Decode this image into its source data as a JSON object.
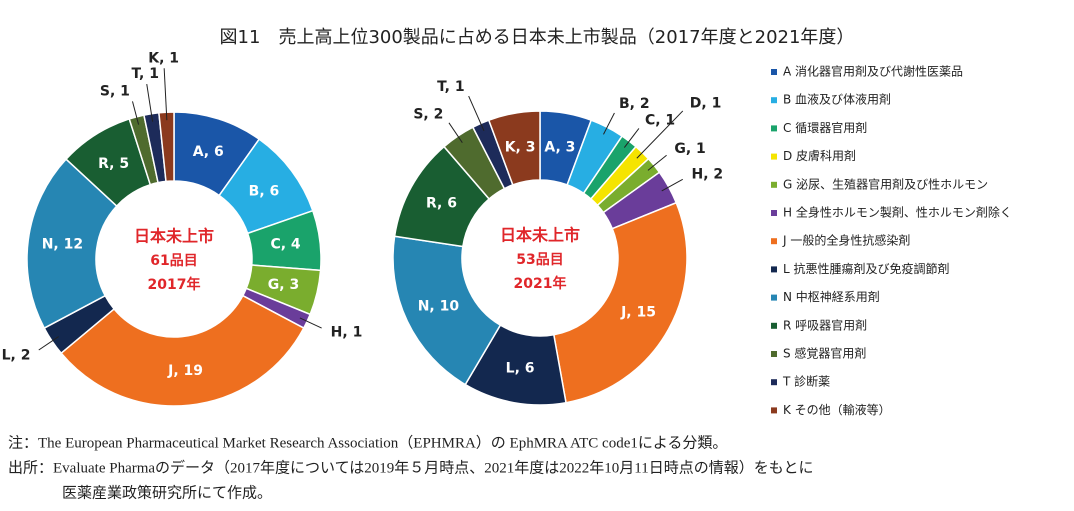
{
  "title": "図11　売上高上位300製品に占める日本未上市製品（2017年度と2021年度）",
  "chart_data": [
    {
      "type": "donut",
      "categories": [
        "A",
        "B",
        "C",
        "G",
        "H",
        "J",
        "L",
        "N",
        "R",
        "S",
        "T",
        "K"
      ],
      "values": [
        6,
        6,
        4,
        3,
        1,
        19,
        2,
        12,
        5,
        1,
        1,
        1
      ],
      "value_labels": [
        "A, 6",
        "B, 6",
        "C, 4",
        "G, 3",
        "H, 1",
        "J, 19",
        "L, 2",
        "N, 12",
        "R, 5",
        "S, 1",
        "T, 1",
        "K, 1"
      ],
      "colors": [
        "#1a56a8",
        "#27aee3",
        "#1aa36b",
        "#7aad2e",
        "#6a3d9a",
        "#ee6f1f",
        "#13284f",
        "#2686b3",
        "#195e32",
        "#4f6b2e",
        "#1d2b5a",
        "#8b3a1e"
      ],
      "center_text": [
        "日本未上市",
        "61品目",
        "2017年"
      ]
    },
    {
      "type": "donut",
      "categories": [
        "A",
        "B",
        "C",
        "D",
        "G",
        "H",
        "J",
        "L",
        "N",
        "R",
        "S",
        "T",
        "K"
      ],
      "values": [
        3,
        2,
        1,
        1,
        1,
        2,
        15,
        6,
        10,
        6,
        2,
        1,
        3
      ],
      "value_labels": [
        "A, 3",
        "B, 2",
        "C, 1",
        "D, 1",
        "G, 1",
        "H, 2",
        "J, 15",
        "L, 6",
        "N, 10",
        "R, 6",
        "S, 2",
        "T, 1",
        "K, 3"
      ],
      "colors": [
        "#1a56a8",
        "#27aee3",
        "#1aa36b",
        "#f5e400",
        "#7aad2e",
        "#6a3d9a",
        "#ee6f1f",
        "#13284f",
        "#2686b3",
        "#195e32",
        "#4f6b2e",
        "#1d2b5a",
        "#8b3a1e"
      ],
      "center_text": [
        "日本未上市",
        "53品目",
        "2021年"
      ]
    }
  ],
  "legend": [
    {
      "label": "A 消化器官用剤及び代謝性医薬品",
      "color": "#1a56a8"
    },
    {
      "label": "B 血液及び体液用剤",
      "color": "#27aee3"
    },
    {
      "label": "C 循環器官用剤",
      "color": "#1aa36b"
    },
    {
      "label": "D 皮膚科用剤",
      "color": "#f5e400"
    },
    {
      "label": "G 泌尿、生殖器官用剤及び性ホルモン",
      "color": "#7aad2e"
    },
    {
      "label": "H 全身性ホルモン製剤、性ホルモン剤除く",
      "color": "#6a3d9a"
    },
    {
      "label": "J 一般的全身性抗感染剤",
      "color": "#ee6f1f"
    },
    {
      "label": "L 抗悪性腫瘍剤及び免疫調節剤",
      "color": "#13284f"
    },
    {
      "label": "N 中枢神経系用剤",
      "color": "#2686b3"
    },
    {
      "label": "R 呼吸器官用剤",
      "color": "#195e32"
    },
    {
      "label": "S 感覚器官用剤",
      "color": "#4f6b2e"
    },
    {
      "label": "T 診断薬",
      "color": "#1d2b5a"
    },
    {
      "label": "K その他（輸液等）",
      "color": "#8b3a1e"
    }
  ],
  "notes": [
    "注：The European Pharmaceutical Market Research Association（EPHMRA）の EphMRA ATC code1による分類。",
    "出所：Evaluate Pharmaのデータ（2017年度については2019年５月時点、2021年度は2022年10月11日時点の情報）をもとに",
    "医薬産業政策研究所にて作成。"
  ]
}
